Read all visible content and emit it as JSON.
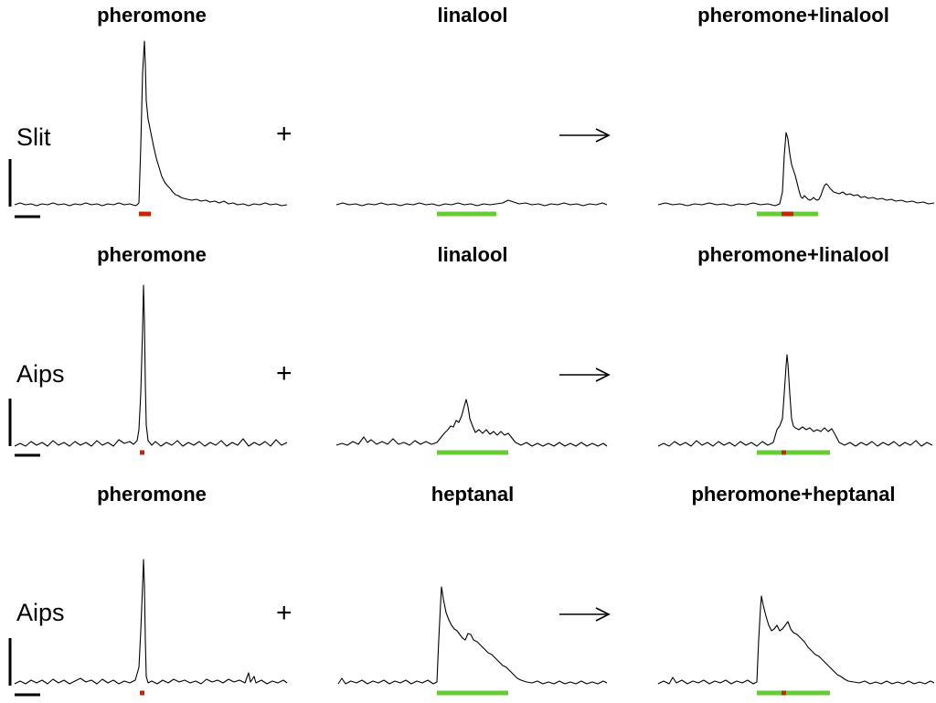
{
  "figure": {
    "rows": [
      {
        "label": "Slit",
        "panels": [
          {
            "title": "pheromone",
            "stimulus": [
              "pheromone"
            ]
          },
          {
            "title": "linalool",
            "stimulus": [
              "linalool"
            ]
          },
          {
            "title": "pheromone+linalool",
            "stimulus": [
              "linalool",
              "pheromone"
            ]
          }
        ]
      },
      {
        "label": "Aips",
        "panels": [
          {
            "title": "pheromone",
            "stimulus": [
              "pheromone"
            ]
          },
          {
            "title": "linalool",
            "stimulus": [
              "linalool"
            ]
          },
          {
            "title": "pheromone+linalool",
            "stimulus": [
              "linalool",
              "pheromone"
            ]
          }
        ]
      },
      {
        "label": "Aips",
        "panels": [
          {
            "title": "pheromone",
            "stimulus": [
              "pheromone"
            ]
          },
          {
            "title": "heptanal",
            "stimulus": [
              "heptanal"
            ]
          },
          {
            "title": "pheromone+heptanal",
            "stimulus": [
              "heptanal",
              "pheromone"
            ]
          }
        ]
      }
    ],
    "plus_symbol": "+",
    "arrow_symbol": "→",
    "colors": {
      "trace": "#000000",
      "pheromone_stimulus": "#cc2200",
      "plant_odor_stimulus": "#66cc33"
    }
  }
}
